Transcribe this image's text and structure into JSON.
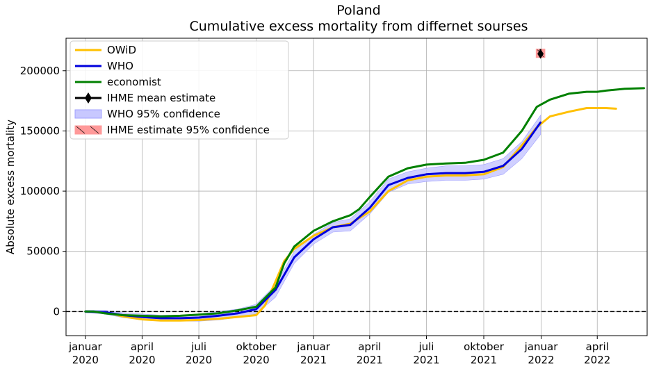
{
  "chart_data": {
    "type": "line",
    "title": "Poland",
    "subtitle": "Cumulative excess mortality from differnet sourses",
    "xlabel": "",
    "ylabel": "Absolute excess mortality",
    "x_range": [
      "2019-12-01",
      "2022-06-20"
    ],
    "ylim": [
      -20000,
      227000
    ],
    "grid": true,
    "legend_position": "upper-left",
    "reference_line": {
      "y": 0,
      "style": "dashed",
      "color": "#000000"
    },
    "x_ticks": [
      {
        "date": "2020-01-01",
        "label": "januar\n2020"
      },
      {
        "date": "2020-04-01",
        "label": "april\n2020"
      },
      {
        "date": "2020-07-01",
        "label": "juli\n2020"
      },
      {
        "date": "2020-10-01",
        "label": "oktober\n2020"
      },
      {
        "date": "2021-01-01",
        "label": "januar\n2021"
      },
      {
        "date": "2021-04-01",
        "label": "april\n2021"
      },
      {
        "date": "2021-07-01",
        "label": "juli\n2021"
      },
      {
        "date": "2021-10-01",
        "label": "oktober\n2021"
      },
      {
        "date": "2022-01-01",
        "label": "januar\n2022"
      },
      {
        "date": "2022-04-01",
        "label": "april\n2022"
      }
    ],
    "y_ticks": [
      {
        "value": 0,
        "label": "0"
      },
      {
        "value": 50000,
        "label": "50000"
      },
      {
        "value": 100000,
        "label": "100000"
      },
      {
        "value": 150000,
        "label": "150000"
      },
      {
        "value": 200000,
        "label": "200000"
      }
    ],
    "series": [
      {
        "name": "OWiD",
        "color": "#ffc000",
        "points": [
          [
            "2020-01-01",
            0
          ],
          [
            "2020-02-01",
            -500
          ],
          [
            "2020-03-01",
            -4000
          ],
          [
            "2020-04-01",
            -6500
          ],
          [
            "2020-05-01",
            -7500
          ],
          [
            "2020-06-01",
            -7500
          ],
          [
            "2020-07-01",
            -7000
          ],
          [
            "2020-08-01",
            -6000
          ],
          [
            "2020-09-01",
            -4500
          ],
          [
            "2020-10-01",
            -3000
          ],
          [
            "2020-10-15",
            5000
          ],
          [
            "2020-11-01",
            25000
          ],
          [
            "2020-11-15",
            42000
          ],
          [
            "2020-12-01",
            52000
          ],
          [
            "2021-01-01",
            63000
          ],
          [
            "2021-02-01",
            70000
          ],
          [
            "2021-03-01",
            73000
          ],
          [
            "2021-04-01",
            83000
          ],
          [
            "2021-05-01",
            100000
          ],
          [
            "2021-06-01",
            109000
          ],
          [
            "2021-07-01",
            112000
          ],
          [
            "2021-08-01",
            113000
          ],
          [
            "2021-09-01",
            113000
          ],
          [
            "2021-10-01",
            114000
          ],
          [
            "2021-11-01",
            120000
          ],
          [
            "2021-12-01",
            138000
          ],
          [
            "2021-12-25",
            153000
          ],
          [
            "2022-01-15",
            162000
          ],
          [
            "2022-02-15",
            166000
          ],
          [
            "2022-03-15",
            169000
          ],
          [
            "2022-04-15",
            169000
          ],
          [
            "2022-05-01",
            168500
          ]
        ]
      },
      {
        "name": "WHO",
        "color": "#0000dd",
        "points": [
          [
            "2020-01-01",
            0
          ],
          [
            "2020-02-01",
            -500
          ],
          [
            "2020-03-01",
            -3000
          ],
          [
            "2020-04-01",
            -4500
          ],
          [
            "2020-05-01",
            -5500
          ],
          [
            "2020-06-01",
            -5500
          ],
          [
            "2020-07-01",
            -5000
          ],
          [
            "2020-08-01",
            -3500
          ],
          [
            "2020-09-01",
            -1500
          ],
          [
            "2020-10-01",
            2000
          ],
          [
            "2020-11-01",
            18000
          ],
          [
            "2020-12-01",
            45000
          ],
          [
            "2021-01-01",
            60000
          ],
          [
            "2021-02-01",
            70000
          ],
          [
            "2021-03-01",
            72000
          ],
          [
            "2021-04-01",
            86000
          ],
          [
            "2021-05-01",
            105000
          ],
          [
            "2021-06-01",
            111000
          ],
          [
            "2021-07-01",
            114000
          ],
          [
            "2021-08-01",
            115000
          ],
          [
            "2021-09-01",
            115000
          ],
          [
            "2021-10-01",
            116000
          ],
          [
            "2021-11-01",
            121000
          ],
          [
            "2021-12-01",
            135000
          ],
          [
            "2021-12-31",
            157000
          ]
        ]
      },
      {
        "name": "economist",
        "color": "#008000",
        "points": [
          [
            "2020-01-01",
            0
          ],
          [
            "2020-01-15",
            0
          ],
          [
            "2020-02-01",
            -1500
          ],
          [
            "2020-03-01",
            -3000
          ],
          [
            "2020-04-01",
            -3500
          ],
          [
            "2020-05-01",
            -4000
          ],
          [
            "2020-06-01",
            -3500
          ],
          [
            "2020-07-01",
            -2500
          ],
          [
            "2020-08-01",
            -1500
          ],
          [
            "2020-09-01",
            1000
          ],
          [
            "2020-10-01",
            4000
          ],
          [
            "2020-11-01",
            20000
          ],
          [
            "2020-11-15",
            40000
          ],
          [
            "2020-12-01",
            54000
          ],
          [
            "2021-01-01",
            67000
          ],
          [
            "2021-02-01",
            75000
          ],
          [
            "2021-03-01",
            80000
          ],
          [
            "2021-03-15",
            85000
          ],
          [
            "2021-04-01",
            95000
          ],
          [
            "2021-05-01",
            112000
          ],
          [
            "2021-06-01",
            119000
          ],
          [
            "2021-07-01",
            122000
          ],
          [
            "2021-08-01",
            123000
          ],
          [
            "2021-09-01",
            123500
          ],
          [
            "2021-10-01",
            126000
          ],
          [
            "2021-11-01",
            132000
          ],
          [
            "2021-12-01",
            150000
          ],
          [
            "2021-12-25",
            170000
          ],
          [
            "2022-01-15",
            176000
          ],
          [
            "2022-02-15",
            181000
          ],
          [
            "2022-03-15",
            182500
          ],
          [
            "2022-04-01",
            182500
          ],
          [
            "2022-04-15",
            183500
          ],
          [
            "2022-05-15",
            185000
          ],
          [
            "2022-06-15",
            185500
          ]
        ]
      }
    ],
    "who_confidence": {
      "name": "WHO 95% confidence",
      "color": "#c8c8ff",
      "points": [
        [
          "2020-01-01",
          -1000,
          1000
        ],
        [
          "2020-02-01",
          -2000,
          1000
        ],
        [
          "2020-03-01",
          -5000,
          -1000
        ],
        [
          "2020-04-01",
          -7000,
          -2000
        ],
        [
          "2020-05-01",
          -8000,
          -3000
        ],
        [
          "2020-06-01",
          -8000,
          -3000
        ],
        [
          "2020-07-01",
          -8000,
          -2000
        ],
        [
          "2020-08-01",
          -7000,
          0
        ],
        [
          "2020-09-01",
          -5000,
          2000
        ],
        [
          "2020-10-01",
          -2000,
          6000
        ],
        [
          "2020-11-01",
          12000,
          22000
        ],
        [
          "2020-12-01",
          40000,
          50000
        ],
        [
          "2021-01-01",
          56000,
          64000
        ],
        [
          "2021-02-01",
          66000,
          74000
        ],
        [
          "2021-03-01",
          67000,
          77000
        ],
        [
          "2021-04-01",
          81000,
          91000
        ],
        [
          "2021-05-01",
          99000,
          110000
        ],
        [
          "2021-06-01",
          106000,
          116000
        ],
        [
          "2021-07-01",
          108000,
          119000
        ],
        [
          "2021-08-01",
          109000,
          121000
        ],
        [
          "2021-09-01",
          109000,
          121000
        ],
        [
          "2021-10-01",
          110000,
          122000
        ],
        [
          "2021-11-01",
          114000,
          127000
        ],
        [
          "2021-12-01",
          127000,
          141000
        ],
        [
          "2021-12-31",
          147000,
          163000
        ]
      ]
    },
    "ihme": {
      "mean_label": "IHME mean estimate",
      "conf_label": "IHME estimate 95% confidence",
      "date": "2021-12-31",
      "mean": 214000,
      "ci": [
        211000,
        218000
      ],
      "ci_dates": [
        "2021-12-24",
        "2022-01-07"
      ],
      "marker_color": "#000000",
      "conf_color": "#ff9999"
    }
  }
}
